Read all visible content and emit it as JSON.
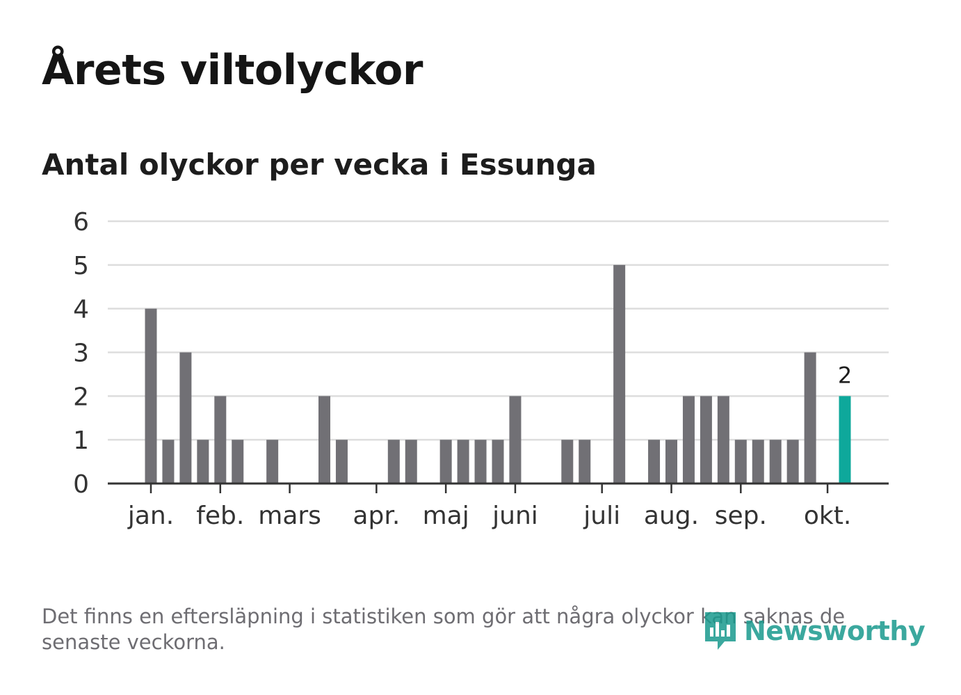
{
  "title": "Årets viltolyckor",
  "subtitle": "Antal olyckor per vecka i Essunga",
  "footnote": "Det finns en eftersläpning i statistiken som gör att några olyckor kan saknas de senaste veckorna.",
  "logo_text": "Newsworthy",
  "colors": {
    "bar": "#717075",
    "highlight": "#0ea89b",
    "grid": "#dddddd",
    "axis": "#333333"
  },
  "chart_data": {
    "type": "bar",
    "title": "Antal olyckor per vecka i Essunga",
    "xlabel": "",
    "ylabel": "",
    "ylim": [
      0,
      6
    ],
    "yticks": [
      0,
      1,
      2,
      3,
      4,
      5,
      6
    ],
    "weeks": [
      1,
      2,
      3,
      4,
      5,
      6,
      7,
      8,
      9,
      10,
      11,
      12,
      13,
      14,
      15,
      16,
      17,
      18,
      19,
      20,
      21,
      22,
      23,
      24,
      25,
      26,
      27,
      28,
      29,
      30,
      31,
      32,
      33,
      34,
      35,
      36,
      37,
      38,
      39,
      40,
      41
    ],
    "values": [
      4,
      1,
      3,
      1,
      2,
      1,
      0,
      1,
      0,
      0,
      2,
      1,
      0,
      0,
      1,
      1,
      0,
      1,
      1,
      1,
      1,
      2,
      0,
      0,
      1,
      1,
      0,
      5,
      0,
      1,
      1,
      2,
      2,
      2,
      1,
      1,
      1,
      1,
      3,
      0,
      2
    ],
    "month_ticks": [
      {
        "label": "jan.",
        "week": 1
      },
      {
        "label": "feb.",
        "week": 5
      },
      {
        "label": "mars",
        "week": 9
      },
      {
        "label": "apr.",
        "week": 14
      },
      {
        "label": "maj",
        "week": 18
      },
      {
        "label": "juni",
        "week": 22
      },
      {
        "label": "juli",
        "week": 27
      },
      {
        "label": "aug.",
        "week": 31
      },
      {
        "label": "sep.",
        "week": 35
      },
      {
        "label": "okt.",
        "week": 40
      }
    ],
    "highlight": {
      "week": 41,
      "label": "2"
    }
  }
}
